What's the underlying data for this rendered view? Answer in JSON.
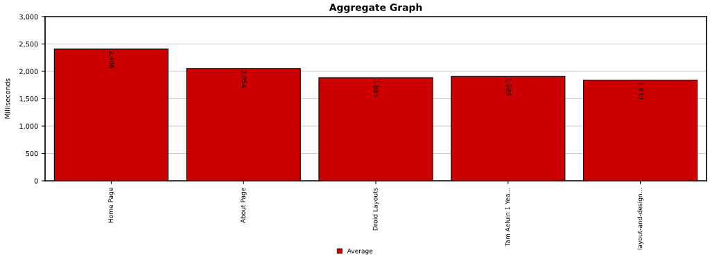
{
  "chart_data": {
    "type": "bar",
    "title": "Aggregate Graph",
    "ylabel": "Milliseconds",
    "categories": [
      "Home Page",
      "About Page",
      "Droid Layouts",
      "Tam Aeluin 1 Yea...",
      "layout-and-design..."
    ],
    "series": [
      {
        "name": "Average",
        "color": "#cc0000",
        "values": [
          2406,
          2054,
          1885,
          1909,
          1839
        ],
        "value_labels": [
          "2,406",
          "2,054",
          "1,885",
          "1,909",
          "1,839"
        ]
      }
    ],
    "ylim": [
      0,
      3000
    ],
    "yticks": [
      {
        "value": 0,
        "label": "0"
      },
      {
        "value": 500,
        "label": "500"
      },
      {
        "value": 1000,
        "label": "1,000"
      },
      {
        "value": 1500,
        "label": "1,500"
      },
      {
        "value": 2000,
        "label": "2,000"
      },
      {
        "value": 2500,
        "label": "2,500"
      },
      {
        "value": 3000,
        "label": "3,000"
      }
    ],
    "grid": "y",
    "legend": "bottom"
  }
}
